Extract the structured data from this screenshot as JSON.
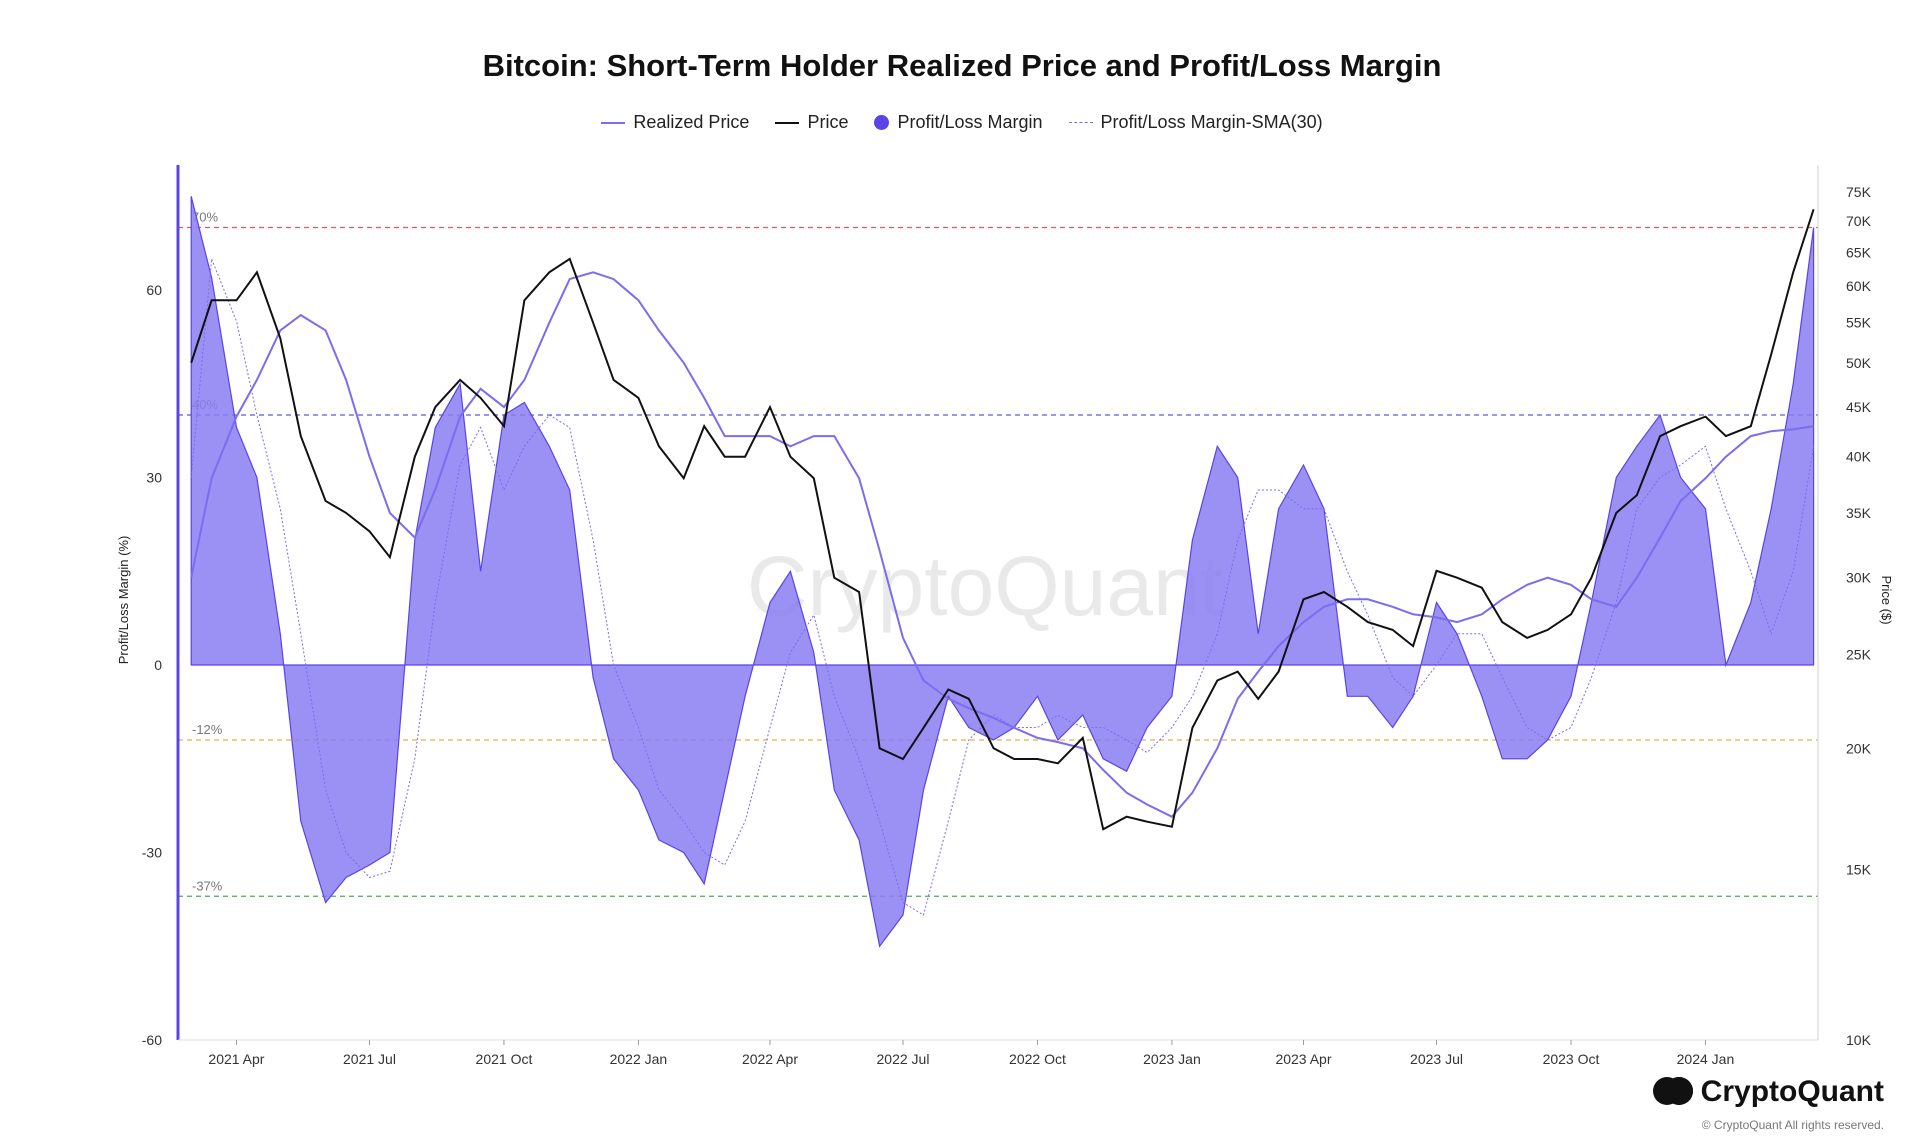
{
  "chart_data": {
    "type": "area",
    "title": "Bitcoin: Short-Term Holder Realized Price and Profit/Loss Margin",
    "ylabel_left": "Profit/Loss Margin (%)",
    "ylabel_right": "Price ($)",
    "ylim_left": [
      -60,
      80
    ],
    "ylim_right": [
      10000,
      80000
    ],
    "right_scale": "log",
    "y_ticks_left": [
      60,
      30,
      0,
      -30,
      -60
    ],
    "y_ticks_left_labels": [
      "60",
      "30",
      "0",
      "-30",
      "-60"
    ],
    "y_ticks_right": [
      75000,
      70000,
      65000,
      60000,
      55000,
      50000,
      45000,
      40000,
      35000,
      30000,
      25000,
      20000,
      15000,
      10000
    ],
    "y_ticks_right_labels": [
      "75K",
      "70K",
      "65K",
      "60K",
      "55K",
      "50K",
      "45K",
      "40K",
      "35K",
      "30K",
      "25K",
      "20K",
      "15K",
      "10K"
    ],
    "x_ticks": [
      "2021 Apr",
      "2021 Jul",
      "2021 Oct",
      "2022 Jan",
      "2022 Apr",
      "2022 Jul",
      "2022 Oct",
      "2023 Jan",
      "2023 Apr",
      "2023 Jul",
      "2023 Oct",
      "2024 Jan"
    ],
    "reference_lines": [
      {
        "value": 70,
        "label": "70%",
        "color": "#e05a5a"
      },
      {
        "value": 40,
        "label": "40%",
        "color": "#5b5bd6"
      },
      {
        "value": -12,
        "label": "-12%",
        "color": "#e8b04a"
      },
      {
        "value": -37,
        "label": "-37%",
        "color": "#4caf50"
      }
    ],
    "legend_position": "top-center",
    "grid": false,
    "colors": {
      "realized_price": "#7b6cf0",
      "price": "#111111",
      "margin_fill": "#8a7cf2",
      "margin_line": "#5a44e6",
      "sma": "#7b6cf0"
    },
    "series": [
      {
        "name": "Profit/Loss Margin",
        "x": [
          "2021-03-01",
          "2021-03-15",
          "2021-04-01",
          "2021-04-15",
          "2021-05-01",
          "2021-05-15",
          "2021-06-01",
          "2021-06-15",
          "2021-07-01",
          "2021-07-15",
          "2021-08-01",
          "2021-08-15",
          "2021-09-01",
          "2021-09-15",
          "2021-10-01",
          "2021-10-15",
          "2021-11-01",
          "2021-11-15",
          "2021-12-01",
          "2021-12-15",
          "2022-01-01",
          "2022-01-15",
          "2022-02-01",
          "2022-02-15",
          "2022-03-01",
          "2022-03-15",
          "2022-04-01",
          "2022-04-15",
          "2022-05-01",
          "2022-05-15",
          "2022-06-01",
          "2022-06-15",
          "2022-07-01",
          "2022-07-15",
          "2022-08-01",
          "2022-08-15",
          "2022-09-01",
          "2022-09-15",
          "2022-10-01",
          "2022-10-15",
          "2022-11-01",
          "2022-11-15",
          "2022-12-01",
          "2022-12-15",
          "2023-01-01",
          "2023-01-15",
          "2023-02-01",
          "2023-02-15",
          "2023-03-01",
          "2023-03-15",
          "2023-04-01",
          "2023-04-15",
          "2023-05-01",
          "2023-05-15",
          "2023-06-01",
          "2023-06-15",
          "2023-07-01",
          "2023-07-15",
          "2023-08-01",
          "2023-08-15",
          "2023-09-01",
          "2023-09-15",
          "2023-10-01",
          "2023-10-15",
          "2023-11-01",
          "2023-11-15",
          "2023-12-01",
          "2023-12-15",
          "2024-01-01",
          "2024-01-15",
          "2024-02-01",
          "2024-02-15",
          "2024-03-01",
          "2024-03-15"
        ],
        "values": [
          75,
          62,
          38,
          30,
          5,
          -25,
          -38,
          -34,
          -32,
          -30,
          20,
          38,
          45,
          15,
          40,
          42,
          35,
          28,
          -2,
          -15,
          -20,
          -28,
          -30,
          -35,
          -20,
          -5,
          10,
          15,
          2,
          -20,
          -28,
          -45,
          -40,
          -20,
          -5,
          -10,
          -12,
          -10,
          -5,
          -12,
          -8,
          -15,
          -17,
          -10,
          -5,
          20,
          35,
          30,
          5,
          25,
          32,
          25,
          -5,
          -5,
          -10,
          -5,
          10,
          5,
          -5,
          -15,
          -15,
          -12,
          -5,
          10,
          30,
          35,
          40,
          30,
          25,
          0,
          10,
          25,
          45,
          70
        ]
      },
      {
        "name": "Profit/Loss Margin-SMA(30)",
        "values": [
          30,
          65,
          55,
          40,
          25,
          5,
          -20,
          -30,
          -34,
          -33,
          -15,
          10,
          32,
          38,
          28,
          35,
          40,
          38,
          20,
          0,
          -10,
          -20,
          -25,
          -30,
          -32,
          -25,
          -10,
          2,
          8,
          -5,
          -15,
          -25,
          -38,
          -40,
          -25,
          -12,
          -8,
          -10,
          -10,
          -8,
          -10,
          -10,
          -12,
          -14,
          -10,
          -5,
          5,
          20,
          28,
          28,
          25,
          25,
          15,
          8,
          -2,
          -5,
          0,
          5,
          5,
          -2,
          -10,
          -12,
          -10,
          -2,
          10,
          25,
          30,
          32,
          35,
          25,
          15,
          5,
          15,
          35
        ]
      },
      {
        "name": "Price",
        "values": [
          50000,
          58000,
          58000,
          62000,
          53000,
          42000,
          36000,
          35000,
          33500,
          31500,
          40000,
          45000,
          48000,
          46000,
          43000,
          58000,
          62000,
          64000,
          55000,
          48000,
          46000,
          41000,
          38000,
          43000,
          40000,
          40000,
          45000,
          40000,
          38000,
          30000,
          29000,
          20000,
          19500,
          21000,
          23000,
          22500,
          20000,
          19500,
          19500,
          19300,
          20500,
          16500,
          17000,
          16800,
          16600,
          21000,
          23500,
          24000,
          22500,
          24000,
          28500,
          29000,
          28000,
          27000,
          26500,
          25500,
          30500,
          30000,
          29300,
          27000,
          26000,
          26500,
          27500,
          30000,
          35000,
          36500,
          42000,
          43000,
          44000,
          42000,
          43000,
          51000,
          62000,
          72000
        ]
      },
      {
        "name": "Realized Price",
        "values": [
          30000,
          38000,
          44000,
          48000,
          54000,
          56000,
          54000,
          48000,
          40000,
          35000,
          33000,
          37000,
          44000,
          47000,
          45000,
          48000,
          55000,
          61000,
          62000,
          61000,
          58000,
          54000,
          50000,
          46000,
          42000,
          42000,
          42000,
          41000,
          42000,
          42000,
          38000,
          32000,
          26000,
          23500,
          22500,
          22000,
          21500,
          21000,
          20500,
          20300,
          20000,
          19000,
          18000,
          17500,
          17000,
          18000,
          20000,
          22500,
          24000,
          25500,
          27000,
          28000,
          28500,
          28500,
          28000,
          27500,
          27300,
          27000,
          27500,
          28500,
          29500,
          30000,
          29500,
          28500,
          28000,
          30000,
          33000,
          36000,
          38000,
          40000,
          42000,
          42500,
          42700,
          43000
        ]
      }
    ]
  },
  "watermark": "CryptoQuant",
  "footer": {
    "logo_text": "CryptoQuant",
    "copyright": "© CryptoQuant All rights reserved."
  },
  "legend": {
    "realized_price": "Realized Price",
    "price": "Price",
    "margin": "Profit/Loss Margin",
    "sma": "Profit/Loss Margin-SMA(30)"
  }
}
